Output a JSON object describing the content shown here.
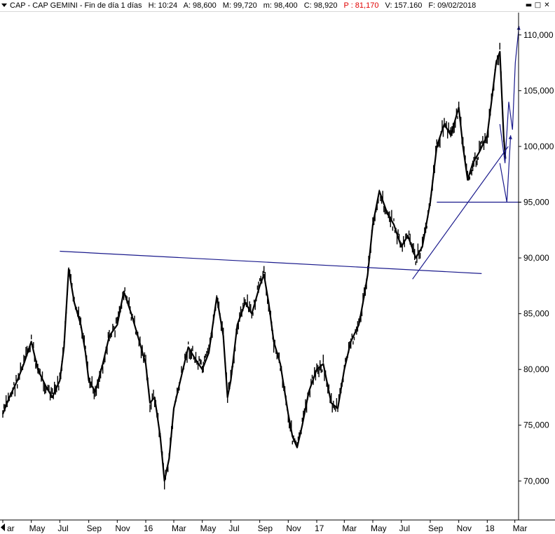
{
  "header": {
    "symbol": "CAP - CAP GEMINI - Fin de día 1 días",
    "high": "H: 10:24",
    "ask": "A: 98,600",
    "max": "M: 99,720",
    "min": "m: 98,400",
    "close": "C: 98,920",
    "pnl": "P : 81,170",
    "volume": "V: 157.160",
    "date": "F: 09/02/2018"
  },
  "window_controls": {
    "minimize": "▬",
    "restore": "□",
    "close": "✕"
  },
  "colors": {
    "price": "#000000",
    "trendline": "#1a1a8c",
    "pnl": "#e00000",
    "background": "#ffffff"
  },
  "chart_data": {
    "type": "line",
    "title": "",
    "xlabel": "",
    "ylabel": "",
    "y_ticks": [
      "110,000",
      "105,000",
      "100,000",
      "95,000",
      "90,000",
      "85,000",
      "80,000",
      "75,000",
      "70,000"
    ],
    "y_tick_values": [
      110,
      105,
      100,
      95,
      90,
      85,
      80,
      75,
      70
    ],
    "ylim": [
      66.5,
      112
    ],
    "x_ticks": [
      "ar",
      "May",
      "Jul",
      "Sep",
      "Nov",
      "16",
      "Mar",
      "May",
      "Jul",
      "Sep",
      "Nov",
      "17",
      "Mar",
      "May",
      "Jul",
      "Sep",
      "Nov",
      "18",
      "Mar"
    ],
    "x_tick_dates": [
      "2015-03-01",
      "2015-05-01",
      "2015-07-01",
      "2015-09-01",
      "2015-11-01",
      "2016-01-01",
      "2016-03-01",
      "2016-05-01",
      "2016-07-01",
      "2016-09-01",
      "2016-11-01",
      "2017-01-01",
      "2017-03-01",
      "2017-05-01",
      "2017-07-01",
      "2017-09-01",
      "2017-11-01",
      "2018-01-01",
      "2018-03-01"
    ],
    "xlim": [
      "2015-03-01",
      "2018-03-15"
    ],
    "grid": false,
    "series": [
      {
        "x": [
          "2015-03-01",
          "2015-03-15",
          "2015-04-01",
          "2015-04-15",
          "2015-05-01",
          "2015-05-15",
          "2015-06-01",
          "2015-06-15",
          "2015-07-01",
          "2015-07-10",
          "2015-07-20",
          "2015-08-01",
          "2015-08-15",
          "2015-08-25",
          "2015-09-01",
          "2015-09-15",
          "2015-10-01",
          "2015-10-15",
          "2015-11-01",
          "2015-11-15",
          "2015-12-01",
          "2015-12-15",
          "2016-01-01",
          "2016-01-10",
          "2016-01-20",
          "2016-02-01",
          "2016-02-10",
          "2016-02-20",
          "2016-03-01",
          "2016-03-15",
          "2016-04-01",
          "2016-04-15",
          "2016-05-01",
          "2016-05-15",
          "2016-06-01",
          "2016-06-15",
          "2016-06-24",
          "2016-07-01",
          "2016-07-15",
          "2016-08-01",
          "2016-08-15",
          "2016-09-01",
          "2016-09-10",
          "2016-09-20",
          "2016-10-01",
          "2016-10-15",
          "2016-11-01",
          "2016-11-10",
          "2016-11-20",
          "2016-12-01",
          "2016-12-15",
          "2017-01-01",
          "2017-01-15",
          "2017-02-01",
          "2017-02-15",
          "2017-03-01",
          "2017-03-15",
          "2017-04-01",
          "2017-04-10",
          "2017-04-20",
          "2017-05-01",
          "2017-05-15",
          "2017-06-01",
          "2017-06-15",
          "2017-07-01",
          "2017-07-15",
          "2017-08-01",
          "2017-08-15",
          "2017-09-01",
          "2017-09-15",
          "2017-10-01",
          "2017-10-15",
          "2017-11-01",
          "2017-11-10",
          "2017-11-20",
          "2017-12-01",
          "2017-12-15",
          "2018-01-01",
          "2018-01-10",
          "2018-01-20",
          "2018-01-28",
          "2018-02-05",
          "2018-02-09"
        ],
        "y": [
          76.0,
          77.5,
          79.0,
          80.5,
          82.5,
          80.0,
          78.5,
          77.5,
          79.0,
          82.0,
          89.0,
          86.0,
          84.0,
          81.5,
          79.0,
          78.0,
          80.5,
          83.0,
          84.0,
          87.0,
          85.0,
          83.0,
          80.5,
          77.0,
          77.5,
          74.0,
          70.0,
          72.0,
          76.5,
          79.0,
          82.0,
          81.0,
          80.0,
          81.5,
          86.5,
          83.0,
          77.5,
          79.0,
          84.0,
          86.0,
          85.0,
          87.5,
          88.5,
          86.0,
          82.5,
          80.5,
          76.0,
          74.0,
          73.0,
          75.0,
          78.0,
          80.0,
          80.5,
          77.0,
          76.5,
          80.0,
          82.5,
          84.0,
          86.0,
          88.5,
          93.0,
          96.0,
          94.0,
          93.0,
          91.0,
          92.0,
          90.0,
          91.0,
          95.0,
          100.0,
          102.0,
          101.0,
          103.5,
          100.0,
          97.0,
          98.5,
          99.5,
          101.0,
          104.0,
          107.5,
          108.5,
          101.0,
          98.9
        ]
      }
    ],
    "annotations": [
      {
        "type": "resistance_line",
        "x": [
          "2015-07-01",
          "2017-12-20"
        ],
        "y": [
          90.6,
          88.6
        ]
      },
      {
        "type": "support_trendline",
        "x": [
          "2017-07-25",
          "2018-02-15"
        ],
        "y": [
          88.1,
          100.0
        ]
      },
      {
        "type": "horizontal_support",
        "x": [
          "2017-09-15",
          "2018-03-15"
        ],
        "y": [
          95.0,
          95.0
        ]
      },
      {
        "type": "projected_path",
        "x": [
          "2018-01-28",
          "2018-02-08",
          "2018-02-16",
          "2018-02-24",
          "2018-03-02",
          "2018-03-10"
        ],
        "y": [
          102.0,
          98.5,
          104.0,
          101.5,
          107.5,
          110.8
        ]
      },
      {
        "type": "projected_path",
        "x": [
          "2018-01-28",
          "2018-02-12",
          "2018-02-20"
        ],
        "y": [
          98.5,
          95.0,
          101.0
        ]
      }
    ]
  }
}
